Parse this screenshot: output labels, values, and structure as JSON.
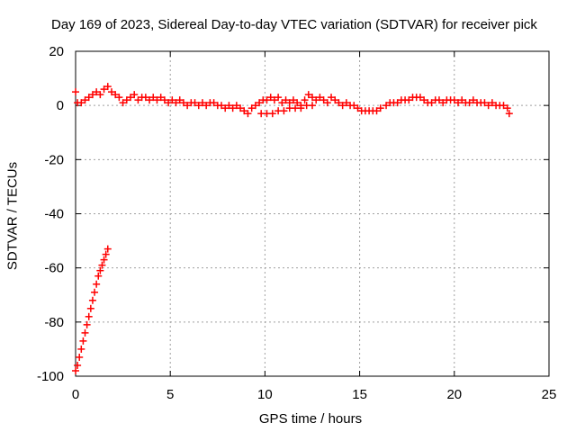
{
  "chart_data": {
    "type": "scatter",
    "title": "Day 169 of 2023, Sidereal Day-to-day VTEC variation (SDTVAR) for receiver pick",
    "xlabel": "GPS time / hours",
    "ylabel": "SDTVAR / TECUs",
    "xlim": [
      0,
      25
    ],
    "ylim": [
      -100,
      20
    ],
    "xticks": [
      0,
      5,
      10,
      15,
      20,
      25
    ],
    "yticks": [
      -100,
      -80,
      -60,
      -40,
      -20,
      0,
      20
    ],
    "grid": true,
    "marker": "+",
    "color": "#ff0000",
    "series": [
      {
        "points": [
          [
            0.0,
            -98
          ],
          [
            0.1,
            -96
          ],
          [
            0.2,
            -93
          ],
          [
            0.3,
            -90
          ],
          [
            0.4,
            -87
          ],
          [
            0.5,
            -84
          ],
          [
            0.6,
            -81
          ],
          [
            0.7,
            -78
          ],
          [
            0.8,
            -75
          ],
          [
            0.9,
            -72
          ],
          [
            1.0,
            -69
          ],
          [
            1.1,
            -66
          ],
          [
            1.2,
            -63
          ],
          [
            1.3,
            -61
          ],
          [
            1.4,
            -59
          ],
          [
            1.5,
            -57
          ],
          [
            1.6,
            -55
          ],
          [
            1.7,
            -53
          ],
          [
            0.0,
            5
          ],
          [
            0.1,
            1
          ],
          [
            0.3,
            1
          ],
          [
            0.5,
            2
          ],
          [
            0.7,
            3
          ],
          [
            0.9,
            4
          ],
          [
            1.1,
            5
          ],
          [
            1.3,
            4
          ],
          [
            1.5,
            6
          ],
          [
            1.7,
            7
          ],
          [
            1.9,
            5
          ],
          [
            2.1,
            4
          ],
          [
            2.3,
            3
          ],
          [
            2.5,
            1
          ],
          [
            2.7,
            2
          ],
          [
            2.9,
            3
          ],
          [
            3.1,
            4
          ],
          [
            3.3,
            2
          ],
          [
            3.5,
            3
          ],
          [
            3.7,
            3
          ],
          [
            3.9,
            2
          ],
          [
            4.1,
            3
          ],
          [
            4.3,
            2
          ],
          [
            4.5,
            3
          ],
          [
            4.7,
            2
          ],
          [
            4.9,
            1
          ],
          [
            5.1,
            2
          ],
          [
            5.3,
            1
          ],
          [
            5.5,
            2
          ],
          [
            5.7,
            1
          ],
          [
            5.9,
            0
          ],
          [
            6.1,
            1
          ],
          [
            6.3,
            1
          ],
          [
            6.5,
            0
          ],
          [
            6.7,
            1
          ],
          [
            6.9,
            0
          ],
          [
            7.1,
            1
          ],
          [
            7.3,
            1
          ],
          [
            7.5,
            0
          ],
          [
            7.7,
            0
          ],
          [
            7.9,
            -1
          ],
          [
            8.1,
            0
          ],
          [
            8.3,
            -1
          ],
          [
            8.5,
            0
          ],
          [
            8.7,
            -1
          ],
          [
            8.9,
            -2
          ],
          [
            9.1,
            -3
          ],
          [
            9.3,
            -1
          ],
          [
            9.5,
            0
          ],
          [
            9.7,
            1
          ],
          [
            9.9,
            2
          ],
          [
            10.1,
            2
          ],
          [
            10.3,
            3
          ],
          [
            10.5,
            2
          ],
          [
            10.7,
            3
          ],
          [
            10.9,
            1
          ],
          [
            11.1,
            2
          ],
          [
            11.3,
            1
          ],
          [
            11.5,
            2
          ],
          [
            11.7,
            1
          ],
          [
            11.9,
            0
          ],
          [
            12.1,
            2
          ],
          [
            12.3,
            4
          ],
          [
            12.5,
            3
          ],
          [
            12.7,
            2
          ],
          [
            12.9,
            3
          ],
          [
            13.1,
            2
          ],
          [
            13.3,
            1
          ],
          [
            13.5,
            3
          ],
          [
            13.7,
            2
          ],
          [
            13.9,
            1
          ],
          [
            14.1,
            0
          ],
          [
            14.3,
            1
          ],
          [
            14.5,
            0
          ],
          [
            14.7,
            0
          ],
          [
            14.9,
            -1
          ],
          [
            15.1,
            -2
          ],
          [
            15.3,
            -2
          ],
          [
            15.5,
            -2
          ],
          [
            15.7,
            -2
          ],
          [
            15.9,
            -2
          ],
          [
            16.1,
            -1
          ],
          [
            9.8,
            -3
          ],
          [
            10.1,
            -3
          ],
          [
            10.4,
            -3
          ],
          [
            10.7,
            -2
          ],
          [
            11.0,
            -2
          ],
          [
            11.3,
            -1
          ],
          [
            11.6,
            -1
          ],
          [
            11.9,
            -1
          ],
          [
            12.2,
            0
          ],
          [
            12.5,
            0
          ],
          [
            16.4,
            0
          ],
          [
            16.6,
            1
          ],
          [
            16.8,
            1
          ],
          [
            17.0,
            1
          ],
          [
            17.2,
            2
          ],
          [
            17.4,
            2
          ],
          [
            17.6,
            2
          ],
          [
            17.8,
            3
          ],
          [
            18.0,
            3
          ],
          [
            18.2,
            3
          ],
          [
            18.4,
            2
          ],
          [
            18.6,
            1
          ],
          [
            18.8,
            1
          ],
          [
            19.0,
            2
          ],
          [
            19.2,
            2
          ],
          [
            19.4,
            1
          ],
          [
            19.6,
            2
          ],
          [
            19.8,
            2
          ],
          [
            20.0,
            2
          ],
          [
            20.2,
            1
          ],
          [
            20.4,
            2
          ],
          [
            20.6,
            1
          ],
          [
            20.8,
            1
          ],
          [
            21.0,
            2
          ],
          [
            21.2,
            1
          ],
          [
            21.4,
            1
          ],
          [
            21.6,
            1
          ],
          [
            21.8,
            0
          ],
          [
            22.0,
            1
          ],
          [
            22.2,
            0
          ],
          [
            22.4,
            0
          ],
          [
            22.6,
            0
          ],
          [
            22.8,
            -1
          ],
          [
            22.9,
            -3
          ]
        ]
      }
    ]
  }
}
